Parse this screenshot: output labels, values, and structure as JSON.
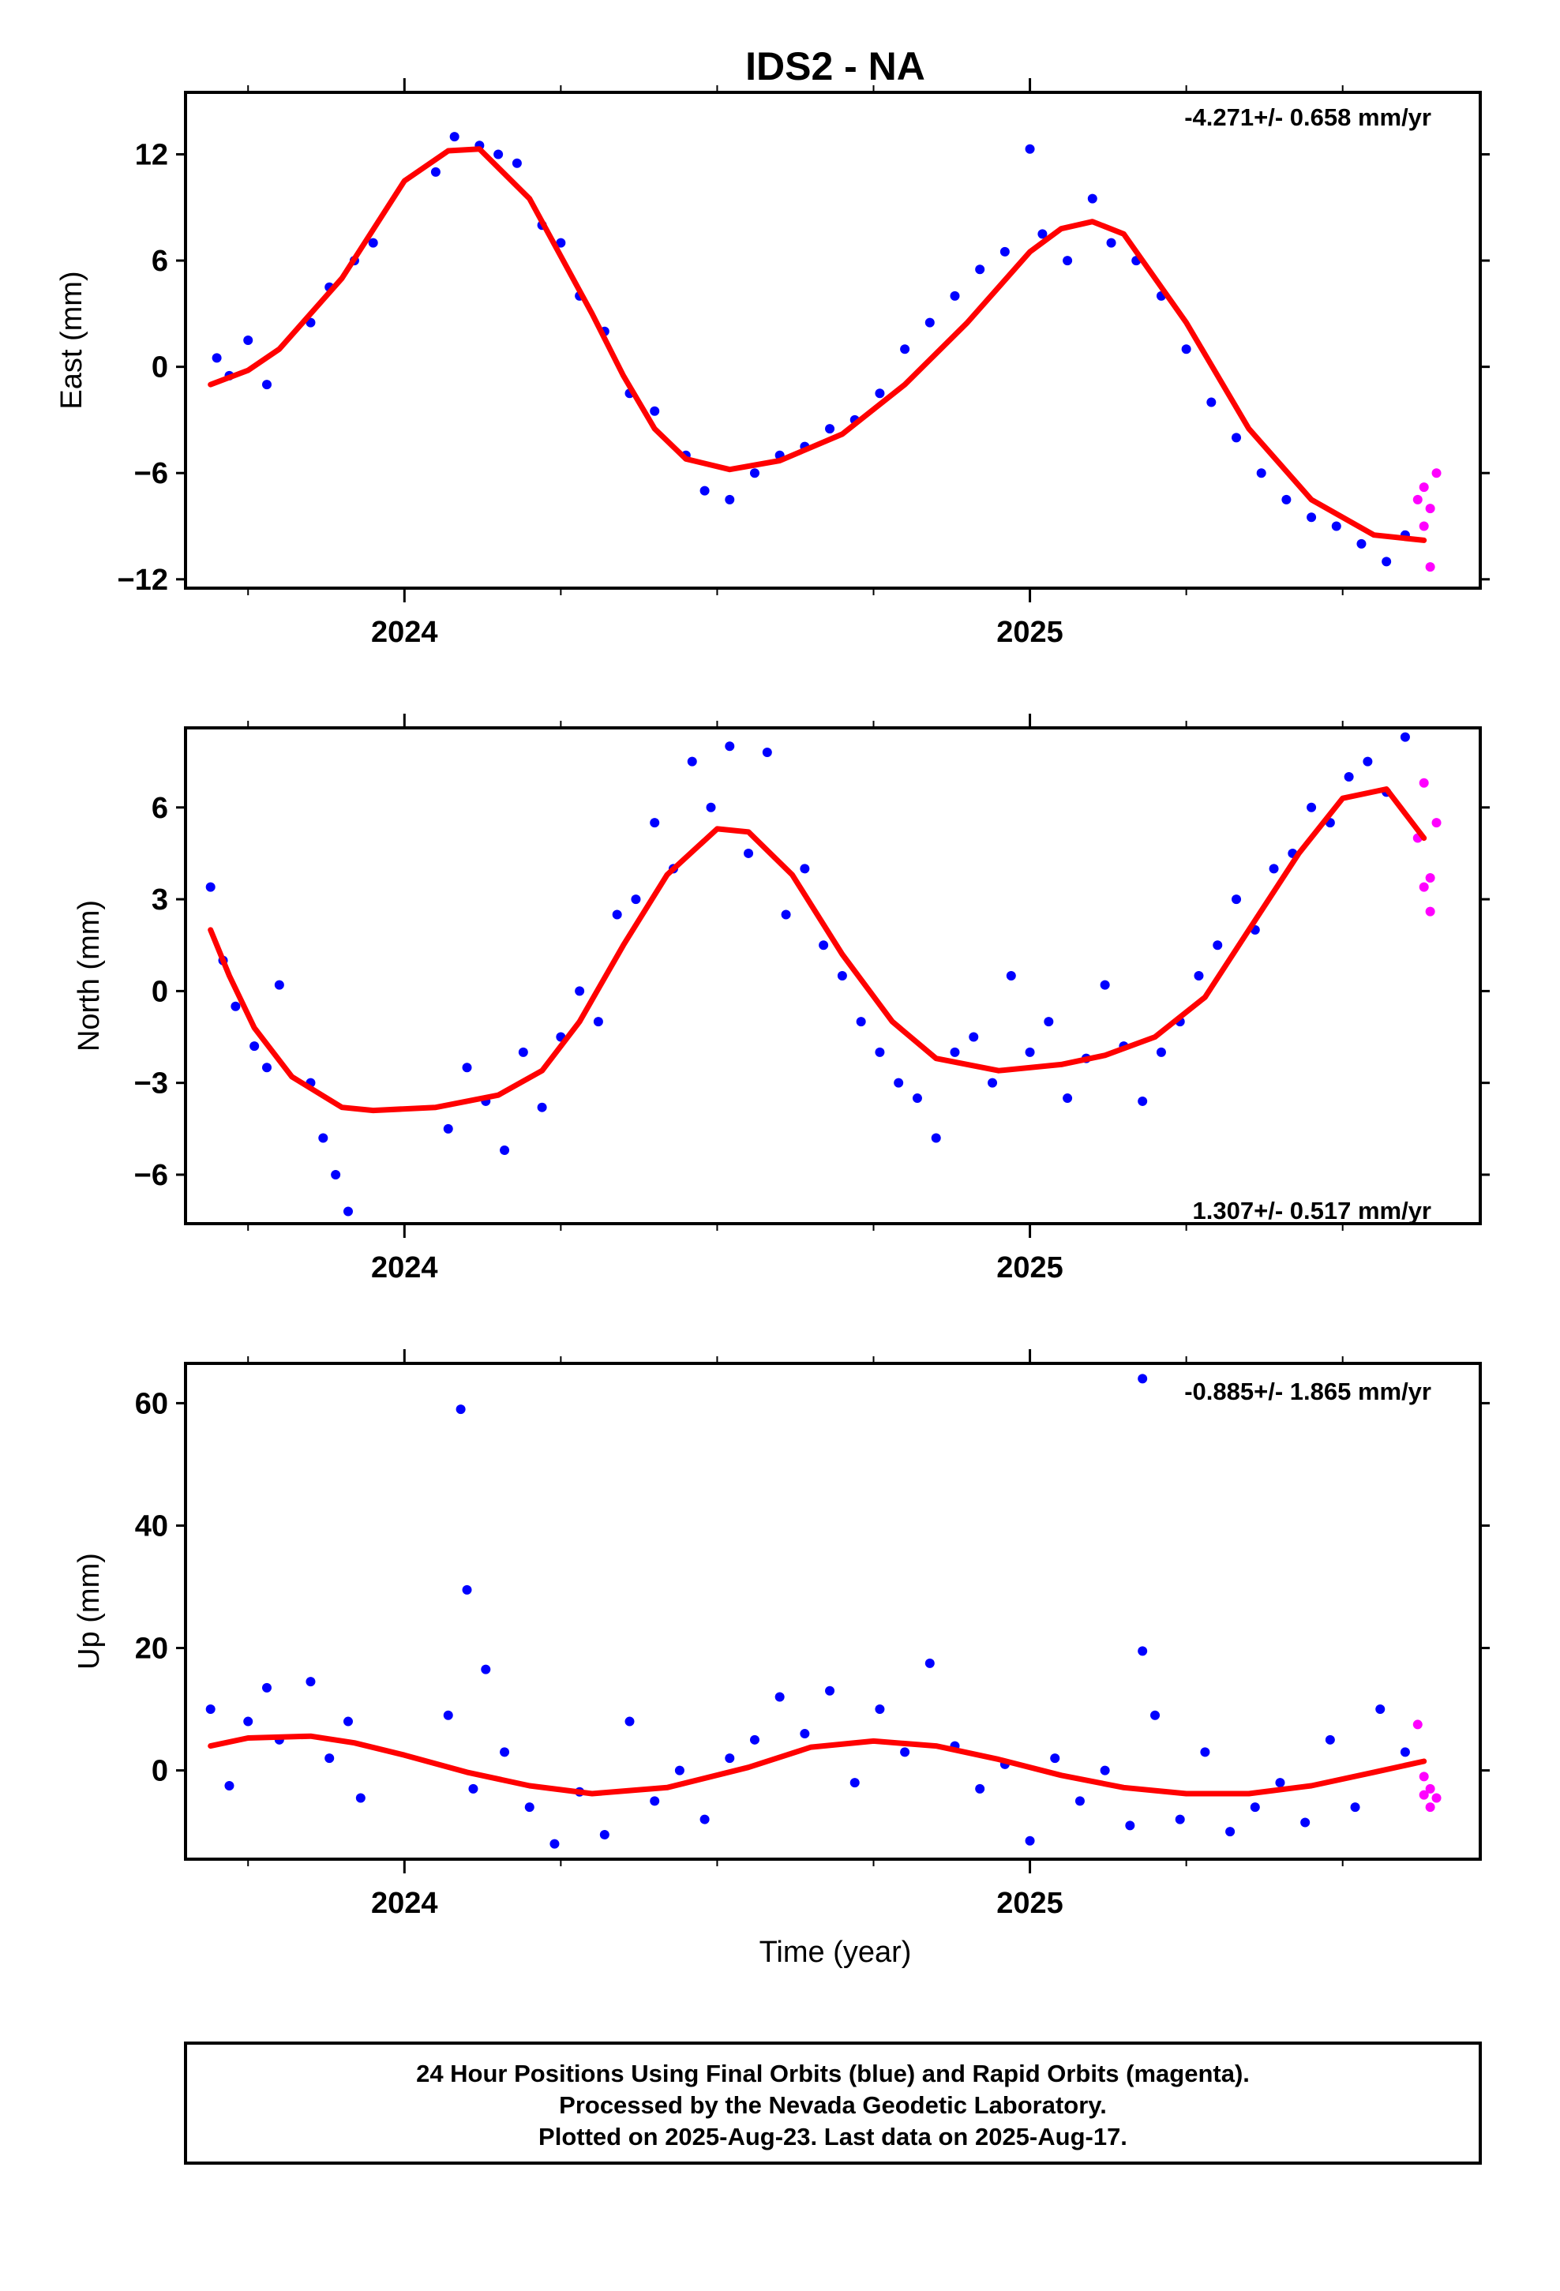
{
  "title": "IDS2 - NA",
  "xlabel": "Time (year)",
  "footer": {
    "line1": "24 Hour Positions Using Final Orbits (blue) and Rapid Orbits (magenta).",
    "line2": "Processed by the Nevada Geodetic Laboratory.",
    "line3": "Plotted on 2025-Aug-23. Last data on 2025-Aug-17."
  },
  "colors": {
    "final": "#0000ff",
    "rapid": "#ff00ff",
    "fit": "#ff0000",
    "frame": "#000000"
  },
  "chart_data": [
    {
      "type": "scatter",
      "ylabel": "East (mm)",
      "rate_text": "-4.271+/- 0.658 mm/yr",
      "rate_position": "top-right",
      "xlim": [
        2023.65,
        2025.72
      ],
      "ylim": [
        -12.5,
        15.5
      ],
      "yticks": [
        12,
        6,
        0,
        -6,
        -12
      ],
      "ytick_labels": [
        "12",
        "6",
        "0",
        "−6",
        "−12"
      ],
      "xtick_labels": [
        {
          "x": 2024,
          "label": "2024"
        },
        {
          "x": 2025,
          "label": "2025"
        }
      ],
      "fit_curve": {
        "x": [
          2023.69,
          2023.75,
          2023.8,
          2023.9,
          2024.0,
          2024.07,
          2024.12,
          2024.2,
          2024.3,
          2024.35,
          2024.4,
          2024.45,
          2024.52,
          2024.6,
          2024.7,
          2024.8,
          2024.9,
          2025.0,
          2025.05,
          2025.1,
          2025.15,
          2025.25,
          2025.35,
          2025.45,
          2025.55,
          2025.63
        ],
        "y": [
          -1.0,
          -0.2,
          1.0,
          5.0,
          10.5,
          12.2,
          12.3,
          9.5,
          3.0,
          -0.5,
          -3.5,
          -5.2,
          -5.8,
          -5.3,
          -3.8,
          -1.0,
          2.5,
          6.5,
          7.8,
          8.2,
          7.5,
          2.5,
          -3.5,
          -7.5,
          -9.5,
          -9.8
        ]
      },
      "final_series": {
        "name": "Final Orbits",
        "x": [
          2023.7,
          2023.72,
          2023.75,
          2023.78,
          2023.85,
          2023.88,
          2023.92,
          2023.95,
          2024.05,
          2024.08,
          2024.12,
          2024.15,
          2024.18,
          2024.22,
          2024.25,
          2024.28,
          2024.32,
          2024.36,
          2024.4,
          2024.45,
          2024.48,
          2024.52,
          2024.56,
          2024.6,
          2024.64,
          2024.68,
          2024.72,
          2024.76,
          2024.8,
          2024.84,
          2024.88,
          2024.92,
          2024.96,
          2025.0,
          2025.02,
          2025.06,
          2025.1,
          2025.13,
          2025.17,
          2025.21,
          2025.25,
          2025.29,
          2025.33,
          2025.37,
          2025.41,
          2025.45,
          2025.49,
          2025.53,
          2025.57,
          2025.6
        ],
        "y": [
          0.5,
          -0.5,
          1.5,
          -1.0,
          2.5,
          4.5,
          6.0,
          7.0,
          11.0,
          13.0,
          12.5,
          12.0,
          11.5,
          8.0,
          7.0,
          4.0,
          2.0,
          -1.5,
          -2.5,
          -5.0,
          -7.0,
          -7.5,
          -6.0,
          -5.0,
          -4.5,
          -3.5,
          -3.0,
          -1.5,
          1.0,
          2.5,
          4.0,
          5.5,
          6.5,
          12.3,
          7.5,
          6.0,
          9.5,
          7.0,
          6.0,
          4.0,
          1.0,
          -2.0,
          -4.0,
          -6.0,
          -7.5,
          -8.5,
          -9.0,
          -10.0,
          -11.0,
          -9.5
        ]
      },
      "rapid_series": {
        "name": "Rapid Orbits",
        "x": [
          2025.62,
          2025.63,
          2025.63,
          2025.64,
          2025.64,
          2025.65
        ],
        "y": [
          -7.5,
          -6.8,
          -9.0,
          -11.3,
          -8.0,
          -6.0
        ]
      }
    },
    {
      "type": "scatter",
      "ylabel": "North (mm)",
      "rate_text": "1.307+/- 0.517 mm/yr",
      "rate_position": "bottom-right",
      "xlim": [
        2023.65,
        2025.72
      ],
      "ylim": [
        -7.6,
        8.6
      ],
      "yticks": [
        6,
        3,
        0,
        -3,
        -6
      ],
      "ytick_labels": [
        "6",
        "3",
        "0",
        "−3",
        "−6"
      ],
      "xtick_labels": [
        {
          "x": 2024,
          "label": "2024"
        },
        {
          "x": 2025,
          "label": "2025"
        }
      ],
      "fit_curve": {
        "x": [
          2023.69,
          2023.72,
          2023.76,
          2023.82,
          2023.9,
          2023.95,
          2024.05,
          2024.15,
          2024.22,
          2024.28,
          2024.35,
          2024.42,
          2024.5,
          2024.55,
          2024.62,
          2024.7,
          2024.78,
          2024.85,
          2024.95,
          2025.05,
          2025.12,
          2025.2,
          2025.28,
          2025.35,
          2025.43,
          2025.5,
          2025.57,
          2025.63
        ],
        "y": [
          2.0,
          0.5,
          -1.2,
          -2.8,
          -3.8,
          -3.9,
          -3.8,
          -3.4,
          -2.6,
          -1.0,
          1.5,
          3.8,
          5.3,
          5.2,
          3.8,
          1.2,
          -1.0,
          -2.2,
          -2.6,
          -2.4,
          -2.1,
          -1.5,
          -0.2,
          2.0,
          4.5,
          6.3,
          6.6,
          5.0
        ]
      },
      "final_series": {
        "name": "Final Orbits",
        "x": [
          2023.69,
          2023.71,
          2023.73,
          2023.76,
          2023.78,
          2023.8,
          2023.85,
          2023.87,
          2023.89,
          2023.91,
          2024.07,
          2024.1,
          2024.13,
          2024.16,
          2024.19,
          2024.22,
          2024.25,
          2024.28,
          2024.31,
          2024.34,
          2024.37,
          2024.4,
          2024.43,
          2024.46,
          2024.49,
          2024.52,
          2024.55,
          2024.58,
          2024.61,
          2024.64,
          2024.67,
          2024.7,
          2024.73,
          2024.76,
          2024.79,
          2024.82,
          2024.85,
          2024.88,
          2024.91,
          2024.94,
          2024.97,
          2025.0,
          2025.03,
          2025.06,
          2025.09,
          2025.12,
          2025.15,
          2025.18,
          2025.21,
          2025.24,
          2025.27,
          2025.3,
          2025.33,
          2025.36,
          2025.39,
          2025.42,
          2025.45,
          2025.48,
          2025.51,
          2025.54,
          2025.57,
          2025.6
        ],
        "y": [
          3.4,
          1.0,
          -0.5,
          -1.8,
          -2.5,
          0.2,
          -3.0,
          -4.8,
          -6.0,
          -7.2,
          -4.5,
          -2.5,
          -3.6,
          -5.2,
          -2.0,
          -3.8,
          -1.5,
          0.0,
          -1.0,
          2.5,
          3.0,
          5.5,
          4.0,
          7.5,
          6.0,
          8.0,
          4.5,
          7.8,
          2.5,
          4.0,
          1.5,
          0.5,
          -1.0,
          -2.0,
          -3.0,
          -3.5,
          -4.8,
          -2.0,
          -1.5,
          -3.0,
          0.5,
          -2.0,
          -1.0,
          -3.5,
          -2.2,
          0.2,
          -1.8,
          -3.6,
          -2.0,
          -1.0,
          0.5,
          1.5,
          3.0,
          2.0,
          4.0,
          4.5,
          6.0,
          5.5,
          7.0,
          7.5,
          6.5,
          8.3
        ]
      },
      "rapid_series": {
        "name": "Rapid Orbits",
        "x": [
          2025.62,
          2025.63,
          2025.63,
          2025.64,
          2025.64,
          2025.65
        ],
        "y": [
          5.0,
          6.8,
          3.4,
          2.6,
          3.7,
          5.5
        ]
      }
    },
    {
      "type": "scatter",
      "ylabel": "Up (mm)",
      "rate_text": "-0.885+/- 1.865 mm/yr",
      "rate_position": "top-right",
      "xlim": [
        2023.65,
        2025.72
      ],
      "ylim": [
        -14.5,
        66.5
      ],
      "yticks": [
        60,
        40,
        20,
        0
      ],
      "ytick_labels": [
        "60",
        "40",
        "20",
        "0"
      ],
      "xtick_labels": [
        {
          "x": 2024,
          "label": "2024"
        },
        {
          "x": 2025,
          "label": "2025"
        }
      ],
      "fit_curve": {
        "x": [
          2023.69,
          2023.75,
          2023.85,
          2023.92,
          2024.0,
          2024.1,
          2024.2,
          2024.3,
          2024.42,
          2024.55,
          2024.65,
          2024.75,
          2024.85,
          2024.95,
          2025.05,
          2025.15,
          2025.25,
          2025.35,
          2025.45,
          2025.55,
          2025.63
        ],
        "y": [
          4.0,
          5.3,
          5.6,
          4.5,
          2.5,
          -0.3,
          -2.5,
          -3.8,
          -2.8,
          0.5,
          3.8,
          4.8,
          4.0,
          1.8,
          -0.8,
          -2.8,
          -3.8,
          -3.8,
          -2.5,
          -0.3,
          1.5
        ]
      },
      "final_series": {
        "name": "Final Orbits",
        "x": [
          2023.69,
          2023.72,
          2023.75,
          2023.78,
          2023.8,
          2023.85,
          2023.88,
          2023.91,
          2023.93,
          2024.07,
          2024.09,
          2024.1,
          2024.11,
          2024.13,
          2024.16,
          2024.2,
          2024.24,
          2024.28,
          2024.32,
          2024.36,
          2024.4,
          2024.44,
          2024.48,
          2024.52,
          2024.56,
          2024.6,
          2024.64,
          2024.68,
          2024.72,
          2024.76,
          2024.8,
          2024.84,
          2024.88,
          2024.92,
          2024.96,
          2025.0,
          2025.04,
          2025.08,
          2025.12,
          2025.16,
          2025.18,
          2025.2,
          2025.24,
          2025.28,
          2025.32,
          2025.36,
          2025.4,
          2025.44,
          2025.48,
          2025.52,
          2025.56,
          2025.6
        ],
        "y": [
          10.0,
          -2.5,
          8.0,
          13.5,
          5.0,
          14.5,
          2.0,
          8.0,
          -4.5,
          9.0,
          59.0,
          29.5,
          -3.0,
          16.5,
          3.0,
          -6.0,
          -12.0,
          -3.5,
          -10.5,
          8.0,
          -5.0,
          0.0,
          -8.0,
          2.0,
          5.0,
          12.0,
          6.0,
          13.0,
          -2.0,
          10.0,
          3.0,
          17.5,
          4.0,
          -3.0,
          1.0,
          -11.5,
          2.0,
          -5.0,
          0.0,
          -9.0,
          19.5,
          9.0,
          -8.0,
          3.0,
          -10.0,
          -6.0,
          -2.0,
          -8.5,
          5.0,
          -6.0,
          10.0,
          3.0
        ]
      },
      "extra_point": {
        "x": 2025.18,
        "y": 64.0
      },
      "rapid_series": {
        "name": "Rapid Orbits",
        "x": [
          2025.62,
          2025.63,
          2025.63,
          2025.64,
          2025.64,
          2025.65
        ],
        "y": [
          7.5,
          -1.0,
          -4.0,
          -6.0,
          -3.0,
          -4.5
        ]
      }
    }
  ]
}
